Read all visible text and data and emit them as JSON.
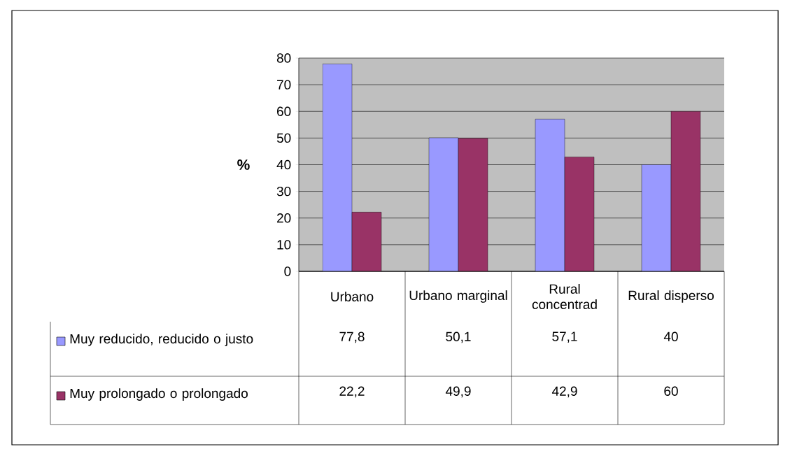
{
  "chart_data": {
    "type": "bar",
    "ylabel": "%",
    "categories": [
      "Urbano",
      "Urbano marginal",
      "Rural concentrad",
      "Rural disperso"
    ],
    "series": [
      {
        "name": "Muy reducido, reducido o justo",
        "color": "#9999ff",
        "values": [
          77.8,
          50.1,
          57.1,
          40
        ],
        "value_labels": [
          "77,8",
          "50,1",
          "57,1",
          "40"
        ]
      },
      {
        "name": "Muy prolongado o prolongado",
        "color": "#993366",
        "values": [
          22.2,
          49.9,
          42.9,
          60
        ],
        "value_labels": [
          "22,2",
          "49,9",
          "42,9",
          "60"
        ]
      }
    ],
    "ylim": [
      0,
      80
    ],
    "yticks": [
      0,
      10,
      20,
      30,
      40,
      50,
      60,
      70,
      80
    ],
    "grid": "y",
    "legend": "bottom left"
  }
}
